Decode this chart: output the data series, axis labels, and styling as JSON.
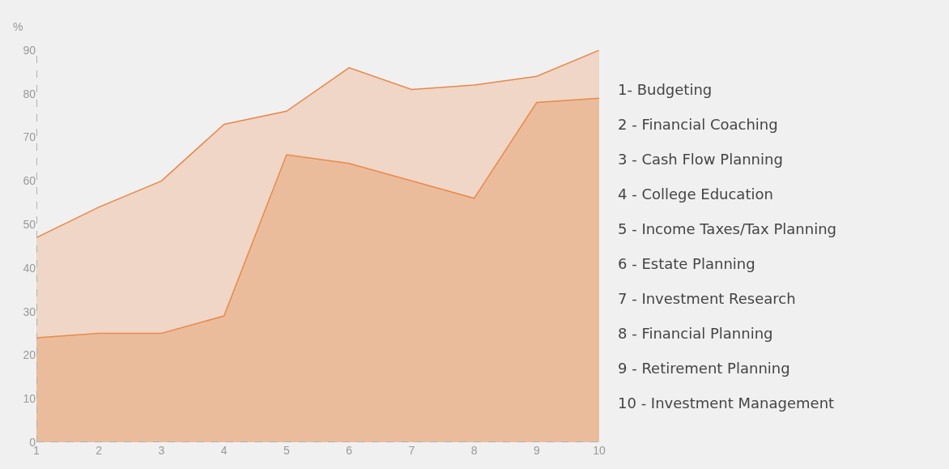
{
  "chart_data": {
    "type": "area",
    "ylabel": "%",
    "x": [
      1,
      2,
      3,
      4,
      5,
      6,
      7,
      8,
      9,
      10
    ],
    "series": [
      {
        "color": "#efd6c6",
        "values": [
          47,
          54,
          60,
          73,
          76,
          86,
          81,
          82,
          84,
          90
        ]
      },
      {
        "color": "#ebbc9c",
        "values": [
          24,
          25,
          25,
          29,
          66,
          64,
          60,
          56,
          78,
          79
        ]
      }
    ],
    "xlim": [
      1,
      10
    ],
    "xticks": [
      1,
      2,
      3,
      4,
      5,
      6,
      7,
      8,
      9,
      10
    ],
    "ylim": [
      0,
      90
    ],
    "yticks": [
      0,
      10,
      20,
      30,
      40,
      50,
      60,
      70,
      80,
      90
    ],
    "grid": false,
    "annotations": [
      "1- Budgeting",
      "2 - Financial Coaching",
      "3 - Cash Flow Planning",
      "4 - College Education",
      "5 - Income Taxes/Tax Planning",
      "6 - Estate Planning",
      "7 - Investment Research",
      "8 - Financial Planning",
      "9 - Retirement Planning",
      "10 - Investment Management"
    ]
  }
}
